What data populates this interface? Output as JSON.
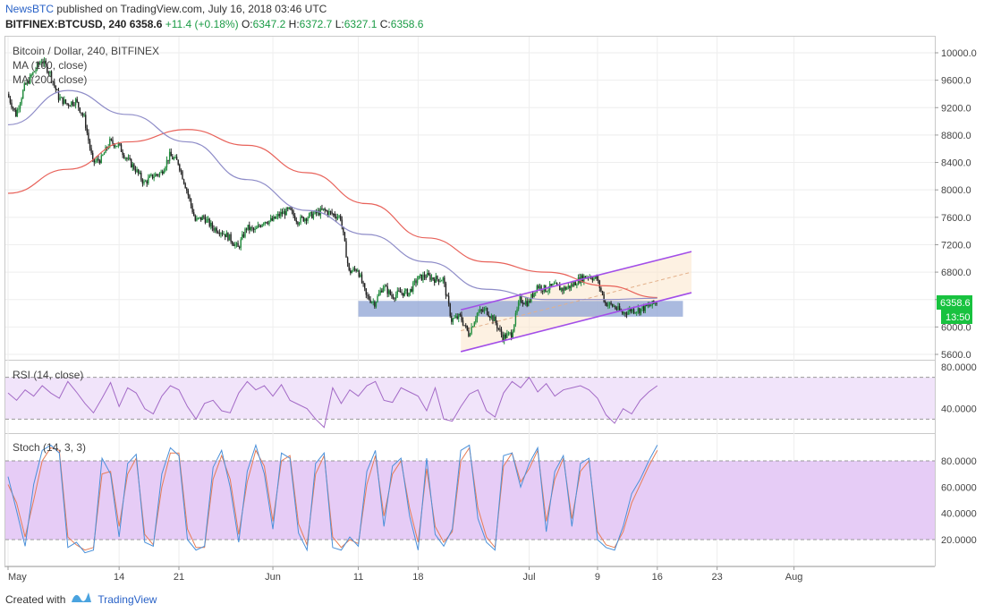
{
  "header": {
    "publisher": "NewsBTC",
    "published_text": "published on TradingView.com, July 16, 2018 03:46 UTC",
    "symbol": "BITFINEX:BTCUSD, 240",
    "last": "6358.6",
    "change": "+11.4 (+0.18%)",
    "o_label": "O:",
    "o": "6347.2",
    "h_label": "H:",
    "h": "6372.7",
    "l_label": "L:",
    "l": "6327.1",
    "c_label": "C:",
    "c": "6358.6"
  },
  "footer": {
    "created_with": "Created with",
    "brand": "TradingView"
  },
  "colors": {
    "candle_up": "#1f8a3b",
    "candle_down": "#222222",
    "ma100": "#8e8cc8",
    "ma200": "#e8625a",
    "channel": "#a24ee8",
    "support_zone": "#8ea3d4",
    "rsi": "#a36ac6",
    "stoch_k": "#4a90d9",
    "stoch_d": "#e77c55",
    "price_badge": "#18c23f"
  },
  "chart_data": [
    {
      "type": "candlestick",
      "title": "Bitcoin / Dollar, 240, BITFINEX",
      "legend": [
        "MA (100, close)",
        "MA (200, close)"
      ],
      "y_ticks": [
        "10000.0",
        "9600.0",
        "9200.0",
        "8800.0",
        "8400.0",
        "8000.0",
        "7600.0",
        "7200.0",
        "6800.0",
        "6400.0",
        "6000.0",
        "5600.0"
      ],
      "ylim": [
        5600,
        10000
      ],
      "x_ticks": [
        "May",
        "14",
        "21",
        "Jun",
        "11",
        "18",
        "Jul",
        "9",
        "16",
        "23",
        "Aug"
      ],
      "last_price_label": "6358.6",
      "countdown_label": "13:50",
      "close_path": [
        [
          "May 1",
          9400
        ],
        [
          "May 2",
          9100
        ],
        [
          "May 3",
          9500
        ],
        [
          "May 4",
          9700
        ],
        [
          "May 5",
          9900
        ],
        [
          "May 6",
          9700
        ],
        [
          "May 7",
          9350
        ],
        [
          "May 8",
          9250
        ],
        [
          "May 9",
          9300
        ],
        [
          "May 10",
          9050
        ],
        [
          "May 11",
          8400
        ],
        [
          "May 12",
          8450
        ],
        [
          "May 13",
          8700
        ],
        [
          "May 14",
          8650
        ],
        [
          "May 15",
          8450
        ],
        [
          "May 16",
          8300
        ],
        [
          "May 17",
          8100
        ],
        [
          "May 18",
          8200
        ],
        [
          "May 19",
          8250
        ],
        [
          "May 20",
          8500
        ],
        [
          "May 21",
          8400
        ],
        [
          "May 22",
          8000
        ],
        [
          "May 23",
          7550
        ],
        [
          "May 24",
          7600
        ],
        [
          "May 25",
          7450
        ],
        [
          "May 26",
          7400
        ],
        [
          "May 27",
          7300
        ],
        [
          "May 28",
          7150
        ],
        [
          "May 29",
          7450
        ],
        [
          "May 30",
          7400
        ],
        [
          "May 31",
          7550
        ],
        [
          "Jun 1",
          7550
        ],
        [
          "Jun 2",
          7650
        ],
        [
          "Jun 3",
          7700
        ],
        [
          "Jun 4",
          7550
        ],
        [
          "Jun 5",
          7600
        ],
        [
          "Jun 6",
          7650
        ],
        [
          "Jun 7",
          7700
        ],
        [
          "Jun 8",
          7650
        ],
        [
          "Jun 9",
          7600
        ],
        [
          "Jun 10",
          6800
        ],
        [
          "Jun 11",
          6850
        ],
        [
          "Jun 12",
          6450
        ],
        [
          "Jun 13",
          6350
        ],
        [
          "Jun 14",
          6600
        ],
        [
          "Jun 15",
          6450
        ],
        [
          "Jun 16",
          6500
        ],
        [
          "Jun 17",
          6500
        ],
        [
          "Jun 18",
          6700
        ],
        [
          "Jun 19",
          6750
        ],
        [
          "Jun 20",
          6700
        ],
        [
          "Jun 21",
          6700
        ],
        [
          "Jun 22",
          6100
        ],
        [
          "Jun 23",
          6150
        ],
        [
          "Jun 24",
          5900
        ],
        [
          "Jun 25",
          6200
        ],
        [
          "Jun 26",
          6250
        ],
        [
          "Jun 27",
          6100
        ],
        [
          "Jun 28",
          5850
        ],
        [
          "Jun 29",
          5900
        ],
        [
          "Jun 30",
          6400
        ],
        [
          "Jul 1",
          6350
        ],
        [
          "Jul 2",
          6600
        ],
        [
          "Jul 3",
          6550
        ],
        [
          "Jul 4",
          6600
        ],
        [
          "Jul 5",
          6550
        ],
        [
          "Jul 6",
          6600
        ],
        [
          "Jul 7",
          6700
        ],
        [
          "Jul 8",
          6750
        ],
        [
          "Jul 9",
          6700
        ],
        [
          "Jul 10",
          6350
        ],
        [
          "Jul 11",
          6300
        ],
        [
          "Jul 12",
          6200
        ],
        [
          "Jul 13",
          6250
        ],
        [
          "Jul 14",
          6250
        ],
        [
          "Jul 15",
          6300
        ],
        [
          "Jul 16",
          6358.6
        ]
      ],
      "ma100": [
        [
          "May 1",
          8950
        ],
        [
          "May 8",
          9450
        ],
        [
          "May 15",
          9100
        ],
        [
          "May 22",
          8700
        ],
        [
          "May 29",
          8150
        ],
        [
          "Jun 5",
          7700
        ],
        [
          "Jun 12",
          7350
        ],
        [
          "Jun 19",
          6950
        ],
        [
          "Jun 26",
          6550
        ],
        [
          "Jul 3",
          6400
        ],
        [
          "Jul 10",
          6400
        ],
        [
          "Jul 16",
          6420
        ]
      ],
      "ma200": [
        [
          "May 1",
          7950
        ],
        [
          "May 8",
          8300
        ],
        [
          "May 15",
          8700
        ],
        [
          "May 22",
          8880
        ],
        [
          "May 29",
          8650
        ],
        [
          "Jun 5",
          8250
        ],
        [
          "Jun 12",
          7800
        ],
        [
          "Jun 19",
          7300
        ],
        [
          "Jun 26",
          6950
        ],
        [
          "Jul 3",
          6800
        ],
        [
          "Jul 10",
          6600
        ],
        [
          "Jul 16",
          6430
        ]
      ],
      "annotations": {
        "support_zone": {
          "from": "Jun 11",
          "to": "Jul 19",
          "low": 6150,
          "high": 6380
        },
        "channel_upper": [
          [
            "Jun 23",
            6250
          ],
          [
            "Jul 20",
            7100
          ]
        ],
        "channel_lower": [
          [
            "Jun 23",
            5640
          ],
          [
            "Jul 20",
            6500
          ]
        ],
        "projection_area": {
          "from": "Jun 23",
          "to": "Jul 20"
        }
      }
    },
    {
      "type": "line",
      "title": "RSI (14, close)",
      "y_ticks": [
        "80.0000",
        "40.0000"
      ],
      "bands": [
        30,
        70
      ],
      "ylim": [
        20,
        80
      ],
      "values": [
        55,
        48,
        58,
        52,
        62,
        55,
        50,
        66,
        56,
        45,
        36,
        50,
        65,
        42,
        60,
        55,
        40,
        35,
        52,
        62,
        58,
        42,
        30,
        45,
        48,
        38,
        36,
        55,
        66,
        58,
        62,
        52,
        63,
        48,
        44,
        40,
        30,
        22,
        60,
        45,
        58,
        52,
        62,
        66,
        48,
        46,
        60,
        56,
        52,
        38,
        60,
        30,
        28,
        42,
        54,
        58,
        38,
        32,
        55,
        66,
        60,
        70,
        56,
        64,
        52,
        58,
        60,
        62,
        58,
        50,
        34,
        26,
        40,
        35,
        48,
        56,
        62
      ]
    },
    {
      "type": "line",
      "title": "Stoch (14, 3, 3)",
      "y_ticks": [
        "80.0000",
        "60.0000",
        "40.0000",
        "20.0000"
      ],
      "bands": [
        20,
        80
      ],
      "ylim": [
        5,
        95
      ],
      "k_values": [
        68,
        42,
        15,
        62,
        88,
        92,
        86,
        14,
        18,
        10,
        12,
        82,
        70,
        22,
        78,
        85,
        18,
        15,
        70,
        90,
        84,
        20,
        12,
        15,
        75,
        88,
        60,
        18,
        72,
        92,
        70,
        28,
        86,
        82,
        25,
        12,
        78,
        86,
        14,
        12,
        22,
        15,
        72,
        88,
        30,
        76,
        82,
        38,
        12,
        82,
        24,
        15,
        28,
        88,
        92,
        36,
        18,
        12,
        84,
        86,
        60,
        78,
        90,
        26,
        72,
        84,
        30,
        78,
        82,
        20,
        14,
        12,
        30,
        55,
        66,
        80,
        92
      ],
      "d_values": [
        62,
        48,
        22,
        50,
        80,
        90,
        88,
        22,
        16,
        12,
        14,
        70,
        72,
        30,
        70,
        82,
        24,
        16,
        60,
        86,
        86,
        28,
        14,
        14,
        66,
        84,
        66,
        24,
        64,
        88,
        76,
        34,
        80,
        84,
        32,
        16,
        70,
        84,
        22,
        14,
        20,
        17,
        62,
        84,
        38,
        70,
        80,
        44,
        18,
        74,
        30,
        18,
        26,
        80,
        90,
        44,
        22,
        14,
        76,
        86,
        64,
        74,
        88,
        34,
        66,
        82,
        36,
        72,
        80,
        26,
        16,
        14,
        26,
        48,
        62,
        76,
        88
      ]
    }
  ]
}
